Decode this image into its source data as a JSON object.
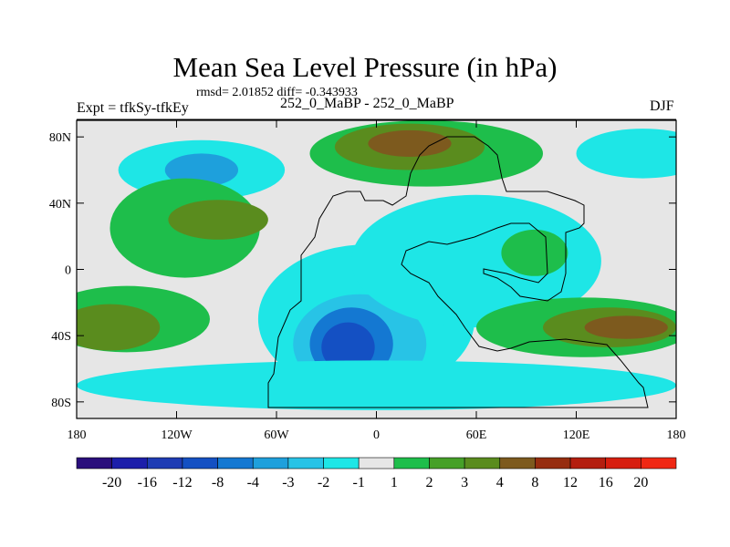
{
  "header": {
    "title": "Mean Sea Level Pressure (in hPa)",
    "stats": "rmsd= 2.01852 diff= -0.343933",
    "experiment": "Expt = tfkSy-tfkEy",
    "center_label": "252_0_MaBP - 252_0_MaBP",
    "season": "DJF"
  },
  "chart_data": {
    "type": "heatmap",
    "title": "Mean Sea Level Pressure (in hPa)",
    "xlabel": "",
    "ylabel": "",
    "xlim": [
      -180,
      180
    ],
    "ylim": [
      -90,
      90
    ],
    "x_ticks": [
      {
        "value": -180,
        "label": "180"
      },
      {
        "value": -120,
        "label": "120W"
      },
      {
        "value": -60,
        "label": "60W"
      },
      {
        "value": 0,
        "label": "0"
      },
      {
        "value": 60,
        "label": "60E"
      },
      {
        "value": 120,
        "label": "120E"
      },
      {
        "value": 180,
        "label": "180"
      }
    ],
    "y_ticks": [
      {
        "value": 80,
        "label": "80N"
      },
      {
        "value": 40,
        "label": "40N"
      },
      {
        "value": 0,
        "label": "0"
      },
      {
        "value": -40,
        "label": "40S"
      },
      {
        "value": -80,
        "label": "80S"
      }
    ],
    "colorbar": {
      "labels": [
        "-20",
        "-16",
        "-12",
        "-8",
        "-4",
        "-3",
        "-2",
        "-1",
        "1",
        "2",
        "3",
        "4",
        "8",
        "12",
        "16",
        "20"
      ],
      "colors": [
        "#2a0e7c",
        "#1c1eaa",
        "#1e3cb4",
        "#1450c3",
        "#1478d2",
        "#1ea0dc",
        "#28c3e6",
        "#1ee6e6",
        "#e6e6e6",
        "#1ebe4b",
        "#46a028",
        "#5a8c1e",
        "#7d5a1e",
        "#962d0f",
        "#b41e0f",
        "#d71e0f",
        "#f02814"
      ]
    },
    "anomaly_regions": [
      {
        "level": "-1",
        "color": "#1ee6e6",
        "center": [
          -6,
          -30
        ],
        "radius": [
          65,
          45
        ]
      },
      {
        "level": "-2",
        "color": "#28c3e6",
        "center": [
          -10,
          -45
        ],
        "radius": [
          40,
          30
        ]
      },
      {
        "level": "-4",
        "color": "#1478d2",
        "center": [
          -15,
          -45
        ],
        "radius": [
          25,
          22
        ]
      },
      {
        "level": "-8",
        "color": "#1450c3",
        "center": [
          -17,
          -47
        ],
        "radius": [
          16,
          15
        ]
      },
      {
        "level": "-1",
        "color": "#1ee6e6",
        "center": [
          60,
          5
        ],
        "radius": [
          75,
          40
        ]
      },
      {
        "level": "-1",
        "color": "#1ee6e6",
        "center": [
          -105,
          60
        ],
        "radius": [
          50,
          18
        ]
      },
      {
        "level": "-3",
        "color": "#1ea0dc",
        "center": [
          -105,
          60
        ],
        "radius": [
          22,
          10
        ]
      },
      {
        "level": "-1",
        "color": "#1ee6e6",
        "center": [
          160,
          70
        ],
        "radius": [
          40,
          15
        ]
      },
      {
        "level": "-1",
        "color": "#1ee6e6",
        "center": [
          0,
          -70
        ],
        "radius": [
          180,
          15
        ]
      },
      {
        "level": "2",
        "color": "#1ebe4b",
        "center": [
          30,
          70
        ],
        "radius": [
          70,
          20
        ]
      },
      {
        "level": "4",
        "color": "#5a8c1e",
        "center": [
          20,
          74
        ],
        "radius": [
          45,
          14
        ]
      },
      {
        "level": "8",
        "color": "#7d5a1e",
        "center": [
          20,
          76
        ],
        "radius": [
          25,
          8
        ]
      },
      {
        "level": "2",
        "color": "#1ebe4b",
        "center": [
          -115,
          25
        ],
        "radius": [
          45,
          30
        ]
      },
      {
        "level": "4",
        "color": "#5a8c1e",
        "center": [
          -95,
          30
        ],
        "radius": [
          30,
          12
        ]
      },
      {
        "level": "2",
        "color": "#1ebe4b",
        "center": [
          -150,
          -30
        ],
        "radius": [
          50,
          20
        ]
      },
      {
        "level": "4",
        "color": "#5a8c1e",
        "center": [
          -160,
          -35
        ],
        "radius": [
          30,
          14
        ]
      },
      {
        "level": "2",
        "color": "#1ebe4b",
        "center": [
          125,
          -35
        ],
        "radius": [
          65,
          18
        ]
      },
      {
        "level": "4",
        "color": "#5a8c1e",
        "center": [
          140,
          -35
        ],
        "radius": [
          40,
          12
        ]
      },
      {
        "level": "8",
        "color": "#7d5a1e",
        "center": [
          150,
          -35
        ],
        "radius": [
          25,
          7
        ]
      },
      {
        "level": "2",
        "color": "#1ebe4b",
        "center": [
          95,
          10
        ],
        "radius": [
          20,
          14
        ]
      }
    ]
  }
}
